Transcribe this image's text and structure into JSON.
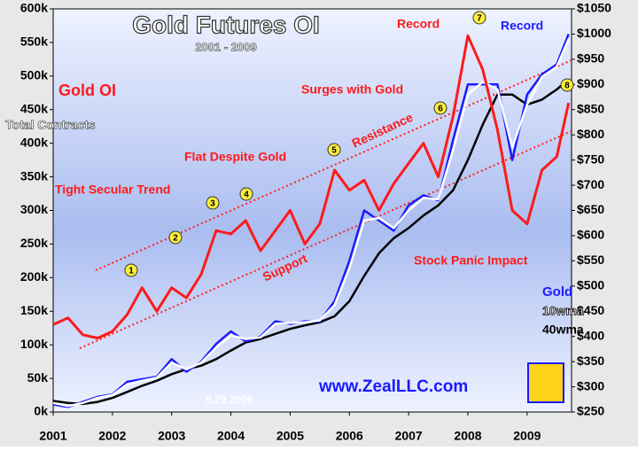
{
  "chart_data": {
    "type": "line",
    "title": "Gold Futures OI",
    "subtitle": "2001 - 2009",
    "x": [
      2001,
      2001.25,
      2001.5,
      2001.75,
      2002,
      2002.25,
      2002.5,
      2002.75,
      2003,
      2003.25,
      2003.5,
      2003.75,
      2004,
      2004.25,
      2004.5,
      2004.75,
      2005,
      2005.25,
      2005.5,
      2005.75,
      2006,
      2006.25,
      2006.5,
      2006.75,
      2007,
      2007.25,
      2007.5,
      2007.75,
      2008,
      2008.25,
      2008.5,
      2008.75,
      2009,
      2009.25,
      2009.5,
      2009.7
    ],
    "xlim": [
      2001,
      2009.75
    ],
    "xticks": [
      2001,
      2002,
      2003,
      2004,
      2005,
      2006,
      2007,
      2008,
      2009
    ],
    "ylim": [
      0,
      600000
    ],
    "yticks": [
      {
        "value": 0,
        "label": "0k"
      },
      {
        "value": 50000,
        "label": "50k"
      },
      {
        "value": 100000,
        "label": "100k"
      },
      {
        "value": 150000,
        "label": "150k"
      },
      {
        "value": 200000,
        "label": "200k"
      },
      {
        "value": 250000,
        "label": "250k"
      },
      {
        "value": 300000,
        "label": "300k"
      },
      {
        "value": 350000,
        "label": "350k"
      },
      {
        "value": 400000,
        "label": "400k"
      },
      {
        "value": 450000,
        "label": "450k"
      },
      {
        "value": 500000,
        "label": "500k"
      },
      {
        "value": 550000,
        "label": "550k"
      },
      {
        "value": 600000,
        "label": "600k"
      }
    ],
    "y2lim": [
      250,
      1050
    ],
    "y2ticks": [
      {
        "value": 250,
        "label": "$250"
      },
      {
        "value": 300,
        "label": "$300"
      },
      {
        "value": 350,
        "label": "$350"
      },
      {
        "value": 400,
        "label": "$400"
      },
      {
        "value": 450,
        "label": "$450"
      },
      {
        "value": 500,
        "label": "$500"
      },
      {
        "value": 550,
        "label": "$550"
      },
      {
        "value": 600,
        "label": "$600"
      },
      {
        "value": 650,
        "label": "$650"
      },
      {
        "value": 700,
        "label": "$700"
      },
      {
        "value": 750,
        "label": "$750"
      },
      {
        "value": 800,
        "label": "$800"
      },
      {
        "value": 850,
        "label": "$850"
      },
      {
        "value": 900,
        "label": "$900"
      },
      {
        "value": 950,
        "label": "$950"
      },
      {
        "value": 1000,
        "label": "$1000"
      },
      {
        "value": 1050,
        "label": "$1050"
      }
    ],
    "series": [
      {
        "name": "Gold OI",
        "color": "#ff1a1a",
        "axis": "y",
        "values": [
          130000,
          140000,
          115000,
          110000,
          120000,
          145000,
          185000,
          150000,
          185000,
          170000,
          205000,
          270000,
          265000,
          285000,
          240000,
          270000,
          300000,
          250000,
          280000,
          360000,
          330000,
          345000,
          300000,
          340000,
          370000,
          400000,
          350000,
          440000,
          560000,
          510000,
          420000,
          300000,
          280000,
          360000,
          380000,
          460000
        ]
      },
      {
        "name": "Gold",
        "color": "#1a1aff",
        "axis": "y2",
        "values": [
          265,
          260,
          270,
          280,
          285,
          310,
          315,
          320,
          355,
          330,
          350,
          385,
          410,
          390,
          400,
          430,
          425,
          430,
          430,
          470,
          550,
          650,
          630,
          610,
          660,
          680,
          670,
          790,
          900,
          900,
          900,
          750,
          880,
          920,
          940,
          1000
        ]
      },
      {
        "name": "10wma",
        "color": "#ffffff",
        "axis": "y2",
        "values": [
          268,
          262,
          268,
          278,
          284,
          305,
          312,
          318,
          348,
          335,
          348,
          378,
          402,
          395,
          398,
          425,
          427,
          428,
          432,
          462,
          535,
          630,
          635,
          615,
          650,
          675,
          672,
          770,
          880,
          905,
          890,
          775,
          860,
          915,
          935,
          990
        ]
      },
      {
        "name": "40wma",
        "color": "#000000",
        "axis": "y2",
        "values": [
          272,
          268,
          266,
          270,
          278,
          290,
          302,
          312,
          325,
          335,
          342,
          355,
          372,
          388,
          395,
          405,
          415,
          422,
          428,
          440,
          470,
          520,
          565,
          595,
          615,
          640,
          660,
          690,
          750,
          820,
          880,
          880,
          860,
          870,
          890,
          910
        ]
      }
    ],
    "annotations": [
      "Gold OI",
      "Total Contracts",
      "Tight Secular Trend",
      "Flat Despite Gold",
      "Resistance",
      "Support",
      "Record",
      "Surges with Gold",
      "Record",
      "Stock Panic Impact",
      "www.ZealLLC.com",
      "9.29.2009"
    ],
    "markers": [
      "1",
      "2",
      "3",
      "4",
      "5",
      "6",
      "7",
      "8"
    ]
  }
}
